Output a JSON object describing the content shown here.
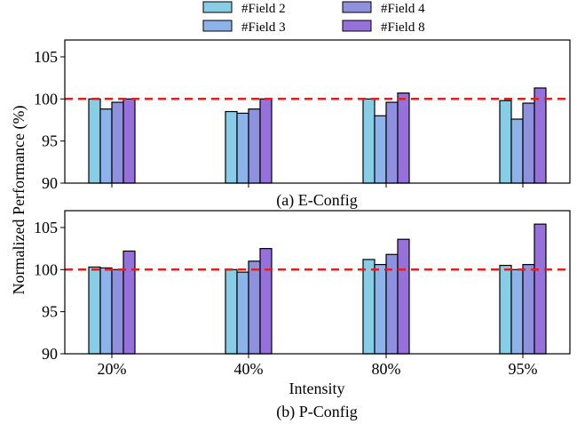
{
  "colors": {
    "series": [
      "#87cde6",
      "#8cb4ea",
      "#8f91df",
      "#9670db"
    ],
    "reference_line": "#e0211d",
    "bar_edge": "#000000"
  },
  "chart_data": {
    "type": "bar",
    "categories": [
      "20%",
      "40%",
      "80%",
      "95%"
    ],
    "xlabel": "Intensity",
    "ylabel": "Normalized Performance (%)",
    "legend": {
      "placement": "top-center",
      "entries": [
        "#Field 2",
        "#Field 3",
        "#Field 4",
        "#Field 8"
      ]
    },
    "reference_line": {
      "value": 100,
      "style": "dashed"
    },
    "grid": false,
    "panels": [
      {
        "caption": "(a) E-Config",
        "ylim": [
          90,
          107
        ],
        "yticks": [
          "90",
          "95",
          "100",
          "105"
        ],
        "series": [
          {
            "name": "#Field 2",
            "values": [
              100.0,
              98.5,
              100.0,
              99.8
            ]
          },
          {
            "name": "#Field 3",
            "values": [
              98.8,
              98.3,
              98.0,
              97.6
            ]
          },
          {
            "name": "#Field 4",
            "values": [
              99.6,
              98.8,
              99.6,
              99.5
            ]
          },
          {
            "name": "#Field 8",
            "values": [
              100.0,
              100.0,
              100.7,
              101.3
            ]
          }
        ]
      },
      {
        "caption": "(b) P-Config",
        "ylim": [
          90,
          107
        ],
        "yticks": [
          "90",
          "95",
          "100",
          "105"
        ],
        "series": [
          {
            "name": "#Field 2",
            "values": [
              100.3,
              100.0,
              101.2,
              100.5
            ]
          },
          {
            "name": "#Field 3",
            "values": [
              100.2,
              99.7,
              100.6,
              100.0
            ]
          },
          {
            "name": "#Field 4",
            "values": [
              100.0,
              101.0,
              101.8,
              100.6
            ]
          },
          {
            "name": "#Field 8",
            "values": [
              102.2,
              102.5,
              103.6,
              105.4
            ]
          }
        ]
      }
    ]
  }
}
